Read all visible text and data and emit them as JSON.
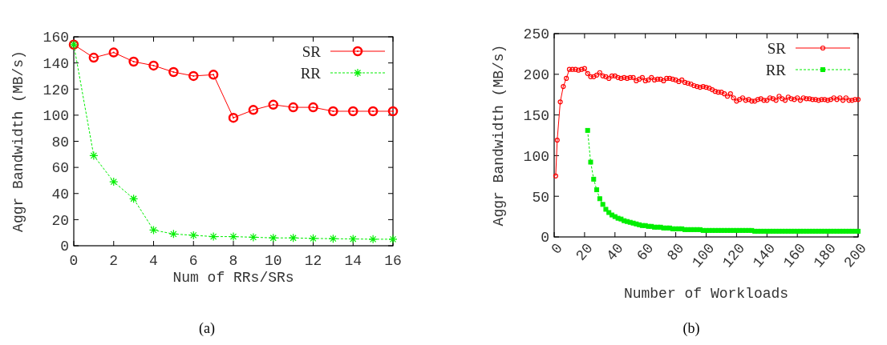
{
  "chart_data": [
    {
      "type": "line",
      "title": "(a)",
      "xlabel": "Num of RRs/SRs",
      "ylabel": "Aggr Bandwidth (MB/s)",
      "xlim": [
        0,
        16
      ],
      "xticks": [
        0,
        2,
        4,
        6,
        8,
        10,
        12,
        14,
        16
      ],
      "ylim": [
        0,
        160
      ],
      "yticks": [
        0,
        20,
        40,
        60,
        80,
        100,
        120,
        140,
        160
      ],
      "legend": "top right",
      "series": [
        {
          "name": "SR",
          "color": "#ff0000",
          "marker": "circle",
          "line_style": "solid",
          "x": [
            0,
            1,
            2,
            3,
            4,
            5,
            6,
            7,
            8,
            9,
            10,
            11,
            12,
            13,
            14,
            15,
            16
          ],
          "values": [
            154,
            144,
            148,
            141,
            138,
            133,
            130,
            131,
            98,
            104,
            108,
            106,
            106,
            103,
            103,
            103,
            103
          ]
        },
        {
          "name": "RR",
          "color": "#00ee00",
          "marker": "cross",
          "line_style": "dashed",
          "x": [
            0,
            1,
            2,
            3,
            4,
            5,
            6,
            7,
            8,
            9,
            10,
            11,
            12,
            13,
            14,
            15,
            16
          ],
          "values": [
            154,
            69,
            49,
            36,
            12,
            9,
            8,
            7,
            7,
            6.5,
            6,
            6,
            5.6,
            5.4,
            5.2,
            5,
            5
          ]
        }
      ]
    },
    {
      "type": "line",
      "title": "(b)",
      "xlabel": "Number of Workloads",
      "ylabel": "Aggr Bandwidth (MB/s)",
      "xlim": [
        0,
        200
      ],
      "xticks": [
        0,
        20,
        40,
        60,
        80,
        100,
        120,
        140,
        160,
        180,
        200
      ],
      "ylim": [
        0,
        250
      ],
      "yticks": [
        0,
        50,
        100,
        150,
        200,
        250
      ],
      "legend": "top right",
      "series": [
        {
          "name": "SR",
          "color": "#ff0000",
          "marker": "circle",
          "line_style": "solid",
          "x": [
            1,
            2,
            4,
            6,
            8,
            10,
            12,
            14,
            16,
            18,
            20,
            22,
            24,
            26,
            28,
            30,
            32,
            34,
            36,
            38,
            40,
            42,
            44,
            46,
            48,
            50,
            52,
            54,
            56,
            58,
            60,
            62,
            64,
            66,
            68,
            70,
            72,
            74,
            76,
            78,
            80,
            82,
            84,
            86,
            88,
            90,
            92,
            94,
            96,
            98,
            100,
            102,
            104,
            106,
            108,
            110,
            112,
            114,
            116,
            118,
            120,
            122,
            124,
            126,
            128,
            130,
            132,
            134,
            136,
            138,
            140,
            142,
            144,
            146,
            148,
            150,
            152,
            154,
            156,
            158,
            160,
            162,
            164,
            166,
            168,
            170,
            172,
            174,
            176,
            178,
            180,
            182,
            184,
            186,
            188,
            190,
            192,
            194,
            196,
            198,
            200
          ],
          "values": [
            75,
            119,
            166,
            185,
            195,
            206,
            206,
            206,
            205,
            206,
            207,
            201,
            197,
            197,
            199,
            202,
            198,
            197,
            195,
            198,
            198,
            196,
            195,
            196,
            195,
            196,
            196,
            192,
            194,
            196,
            192,
            193,
            196,
            193,
            194,
            194,
            192,
            195,
            195,
            194,
            193,
            191,
            193,
            190,
            189,
            188,
            186,
            185,
            184,
            185,
            184,
            183,
            181,
            179,
            178,
            178,
            176,
            173,
            176,
            171,
            167,
            169,
            171,
            168,
            169,
            167,
            167,
            169,
            170,
            168,
            168,
            171,
            170,
            168,
            173,
            170,
            168,
            172,
            170,
            169,
            171,
            168,
            171,
            170,
            170,
            169,
            169,
            168,
            169,
            169,
            168,
            169,
            171,
            169,
            171,
            168,
            171,
            168,
            168,
            169,
            169
          ]
        },
        {
          "name": "RR",
          "color": "#00ee00",
          "marker": "square",
          "line_style": "dashed",
          "x": [
            22,
            24,
            26,
            28,
            30,
            32,
            34,
            36,
            38,
            40,
            42,
            44,
            46,
            48,
            50,
            52,
            54,
            56,
            58,
            60,
            62,
            64,
            66,
            68,
            70,
            72,
            74,
            76,
            78,
            80,
            82,
            84,
            86,
            88,
            90,
            92,
            94,
            96,
            98,
            100,
            102,
            104,
            106,
            108,
            110,
            112,
            114,
            116,
            118,
            120,
            122,
            124,
            126,
            128,
            130,
            132,
            134,
            136,
            138,
            140,
            142,
            144,
            146,
            148,
            150,
            152,
            154,
            156,
            158,
            160,
            162,
            164,
            166,
            168,
            170,
            172,
            174,
            176,
            178,
            180,
            182,
            184,
            186,
            188,
            190,
            192,
            194,
            196,
            198,
            200
          ],
          "values": [
            131,
            92,
            71,
            58,
            47,
            40,
            34,
            30,
            27,
            25,
            23,
            22,
            20,
            19,
            18,
            17,
            16,
            15,
            14,
            14,
            13,
            13,
            12,
            12,
            12,
            11,
            11,
            11,
            10,
            10,
            10,
            10,
            9,
            9,
            9,
            9,
            9,
            9,
            8,
            8,
            8,
            8,
            8,
            8,
            8,
            8,
            8,
            8,
            8,
            8,
            8,
            8,
            8,
            8,
            8,
            7,
            7,
            7,
            7,
            7,
            7,
            7,
            7,
            7,
            7,
            7,
            7,
            7,
            7,
            7,
            7,
            7,
            7,
            7,
            7,
            7,
            7,
            7,
            7,
            7,
            7,
            7,
            7,
            7,
            7,
            7,
            7,
            7,
            7,
            7
          ]
        }
      ]
    }
  ]
}
